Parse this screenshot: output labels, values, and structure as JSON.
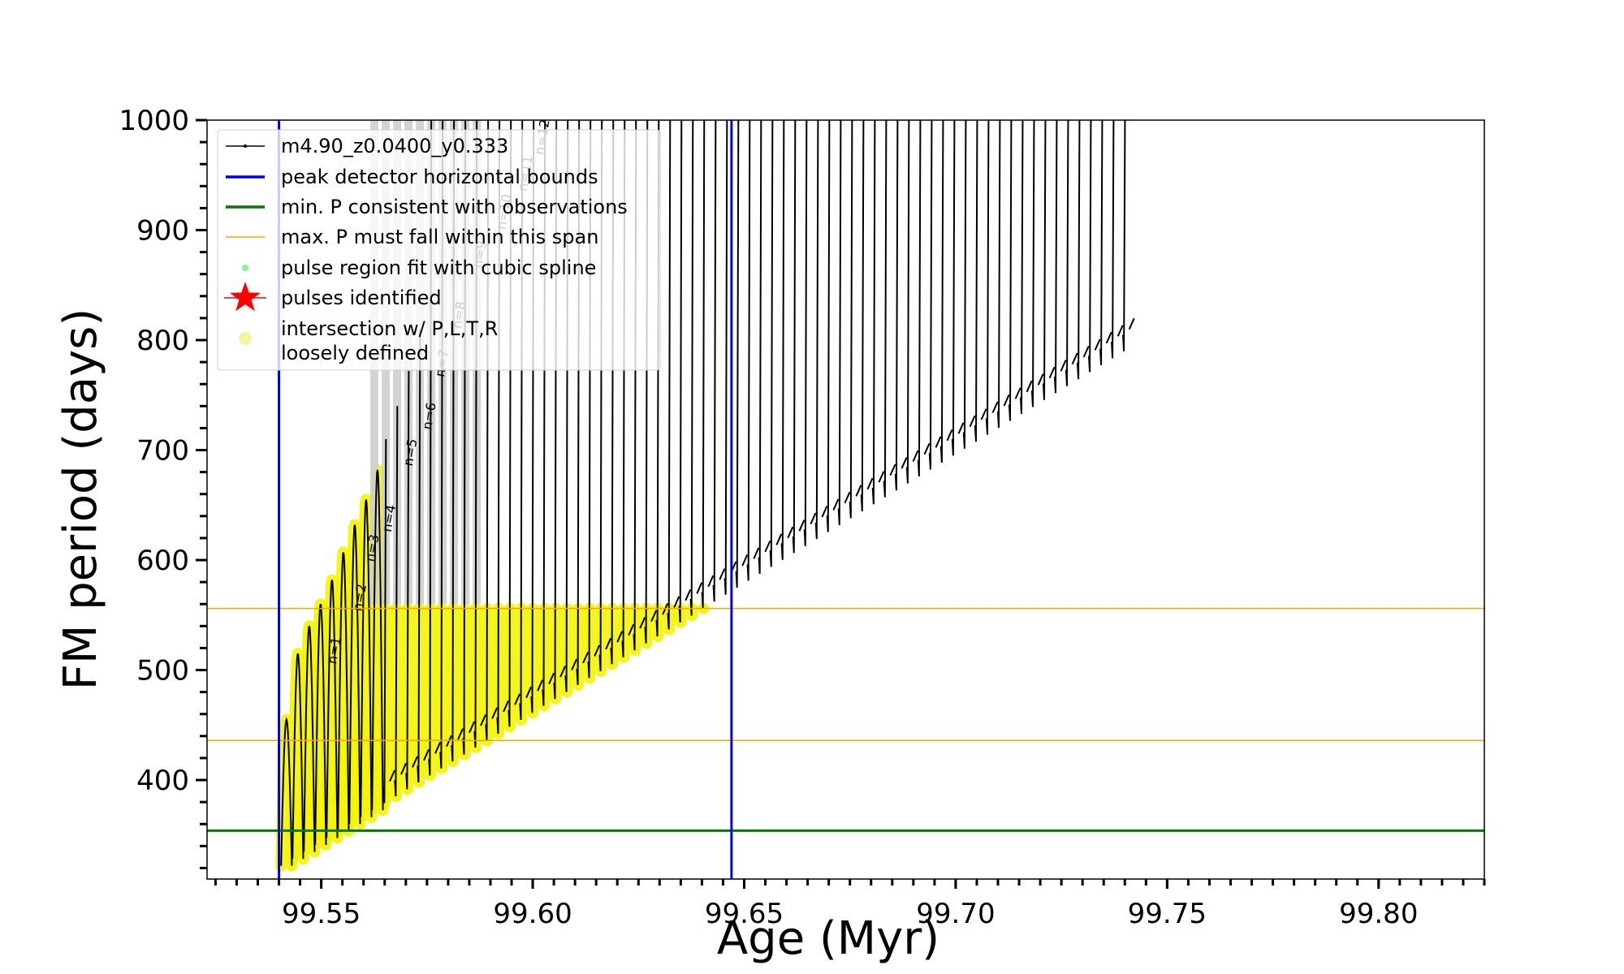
{
  "chart_data": {
    "type": "line",
    "xlabel": "Age (Myr)",
    "ylabel": "FM period (days)",
    "xlim": [
      99.523,
      99.825
    ],
    "ylim": [
      310,
      1000
    ],
    "x_ticks": [
      "99.55",
      "99.60",
      "99.65",
      "99.70",
      "99.75",
      "99.80"
    ],
    "y_ticks": [
      "400",
      "500",
      "600",
      "700",
      "800",
      "900",
      "1000"
    ],
    "grid": false,
    "legend_placement": "upper-left",
    "legend": [
      {
        "label": "m4.90_z0.0400_y0.333",
        "color": "#000000",
        "marker": "line-dot"
      },
      {
        "label": "peak detector horizontal bounds",
        "color": "#0000ee",
        "marker": "line"
      },
      {
        "label": "min. P consistent with observations",
        "color": "#007a00",
        "marker": "line"
      },
      {
        "label": "max. P must fall within this span",
        "color": "#ffa500",
        "marker": "thin-line"
      },
      {
        "label": "pulse region fit with cubic spline",
        "color": "#90ee90",
        "marker": "dot"
      },
      {
        "label": "pulses identified",
        "color": "#ff0000",
        "marker": "star"
      },
      {
        "label": "intersection w/ P,L,T,R",
        "label2": "loosely defined",
        "color": "#f5f5a0",
        "marker": "circle"
      }
    ],
    "vertical_lines": [
      {
        "x": 99.54,
        "color": "#0000ee"
      },
      {
        "x": 99.647,
        "color": "#0000ee"
      }
    ],
    "horizontal_lines": [
      {
        "y": 354,
        "color": "#007a00",
        "width": 3
      },
      {
        "y": 436,
        "color": "#ffa500",
        "width": 1.5
      },
      {
        "y": 556,
        "color": "#ffa500",
        "width": 1.5
      }
    ],
    "series": [
      {
        "color": "#000000",
        "pulse_start": 99.5405,
        "pulse_spacing": 0.00269,
        "pulse_count": 75,
        "min_period_first": 322,
        "min_period_slope": 2350,
        "arch_peaks": [
          455,
          515,
          540,
          560,
          582,
          607,
          632,
          655,
          682,
          710,
          740,
          772,
          810
        ]
      }
    ],
    "pulse_labels": [
      {
        "text": "n=1",
        "x": 99.5535,
        "y": 505
      },
      {
        "text": "n=2",
        "x": 99.5595,
        "y": 553
      },
      {
        "text": "n=3",
        "x": 99.5625,
        "y": 598
      },
      {
        "text": "n=4",
        "x": 99.5665,
        "y": 625
      },
      {
        "text": "n=5",
        "x": 99.5715,
        "y": 685
      },
      {
        "text": "n=6",
        "x": 99.576,
        "y": 718
      },
      {
        "text": "n=7",
        "x": 99.579,
        "y": 766
      },
      {
        "text": "n=8",
        "x": 99.583,
        "y": 810
      },
      {
        "text": "n=9",
        "x": 99.588,
        "y": 865
      },
      {
        "text": "n=10",
        "x": 99.5935,
        "y": 900
      },
      {
        "text": "n=11",
        "x": 99.5985,
        "y": 935
      },
      {
        "text": "n=12",
        "x": 99.6025,
        "y": 968
      },
      {
        "text": "n=13",
        "x": 99.6065,
        "y": 1000
      }
    ]
  }
}
